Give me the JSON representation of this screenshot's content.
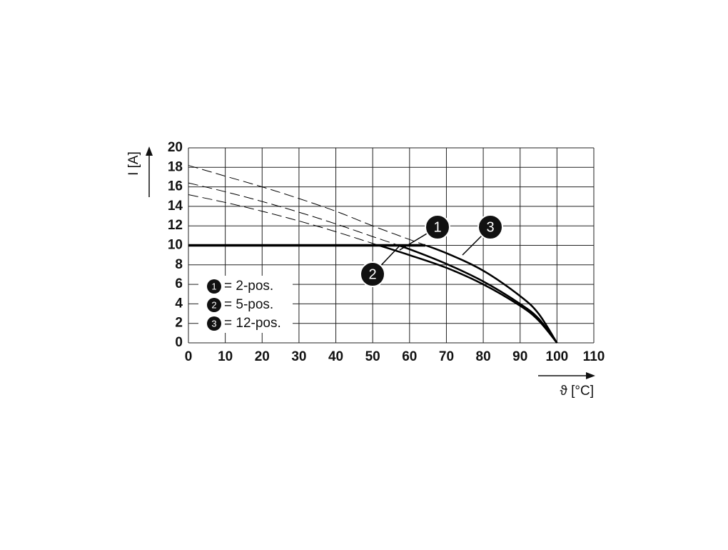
{
  "chart_data": {
    "type": "line",
    "x_label": "ϑ [°C]",
    "y_label": "I [A]",
    "xlim": [
      0,
      110
    ],
    "ylim": [
      0,
      20
    ],
    "xticks": [
      0,
      10,
      20,
      30,
      40,
      50,
      60,
      70,
      80,
      90,
      100,
      110
    ],
    "yticks": [
      0,
      2,
      4,
      6,
      8,
      10,
      12,
      14,
      16,
      18,
      20
    ],
    "grid": true,
    "limit": 10,
    "x": [
      0,
      10,
      20,
      30,
      40,
      50,
      60,
      70,
      80,
      90,
      95,
      100
    ],
    "series": [
      {
        "name": "= 2-pos.",
        "marker": "1",
        "color": "#000000",
        "values": [
          16.4,
          15.5,
          14.5,
          13.4,
          12.2,
          10.9,
          9.6,
          8.1,
          6.3,
          4.0,
          2.5,
          0
        ]
      },
      {
        "name": "= 5-pos.",
        "marker": "2",
        "color": "#000000",
        "values": [
          15.2,
          14.4,
          13.5,
          12.5,
          11.4,
          10.2,
          9.0,
          7.7,
          6.0,
          3.8,
          2.3,
          0
        ]
      },
      {
        "name": "= 12-pos.",
        "marker": "3",
        "color": "#000000",
        "values": [
          18.2,
          17.1,
          16.0,
          14.8,
          13.5,
          12.0,
          10.6,
          9.2,
          7.4,
          4.8,
          3.0,
          0
        ]
      }
    ],
    "legend": "lower-left"
  }
}
